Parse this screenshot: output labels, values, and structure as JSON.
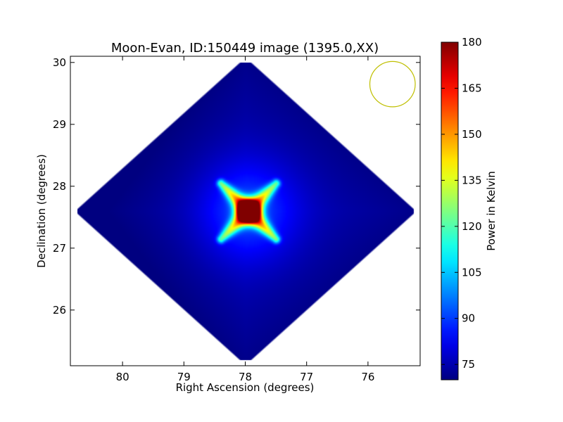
{
  "chart_data": {
    "type": "heatmap",
    "title": "Moon-Evan, ID:150449 image (1395.0,XX)",
    "xlabel": "Right Ascension (degrees)",
    "ylabel": "Declination (degrees)",
    "xlim": [
      80.85,
      75.15
    ],
    "ylim": [
      25.1,
      30.1
    ],
    "x_reversed": true,
    "xticks": [
      80,
      79,
      78,
      77,
      76
    ],
    "yticks": [
      26,
      27,
      28,
      29,
      30
    ],
    "grid": false,
    "colorbar": {
      "label": "Power in Kelvin",
      "range": [
        70,
        180
      ],
      "ticks": [
        75,
        90,
        105,
        120,
        135,
        150,
        165,
        180
      ],
      "colormap": "jet"
    },
    "coverage": {
      "shape": "diamond",
      "center": [
        78.0,
        27.6
      ],
      "half_width_ra": 2.8,
      "half_height_dec": 2.5,
      "edge_value": 71,
      "background_value": 76
    },
    "source": {
      "center": [
        77.95,
        27.6
      ],
      "peak_value": 180,
      "halo_value": 92,
      "halo_sigma_deg": 0.55,
      "arms": [
        {
          "to": [
            78.4,
            28.05
          ],
          "value": 150
        },
        {
          "to": [
            77.5,
            28.05
          ],
          "value": 145
        },
        {
          "to": [
            78.4,
            27.15
          ],
          "value": 145
        },
        {
          "to": [
            77.5,
            27.15
          ],
          "value": 150
        }
      ]
    },
    "beam_circle": {
      "center": [
        75.6,
        29.65
      ],
      "radius_deg": 0.37,
      "color": "#bfbf00"
    }
  }
}
